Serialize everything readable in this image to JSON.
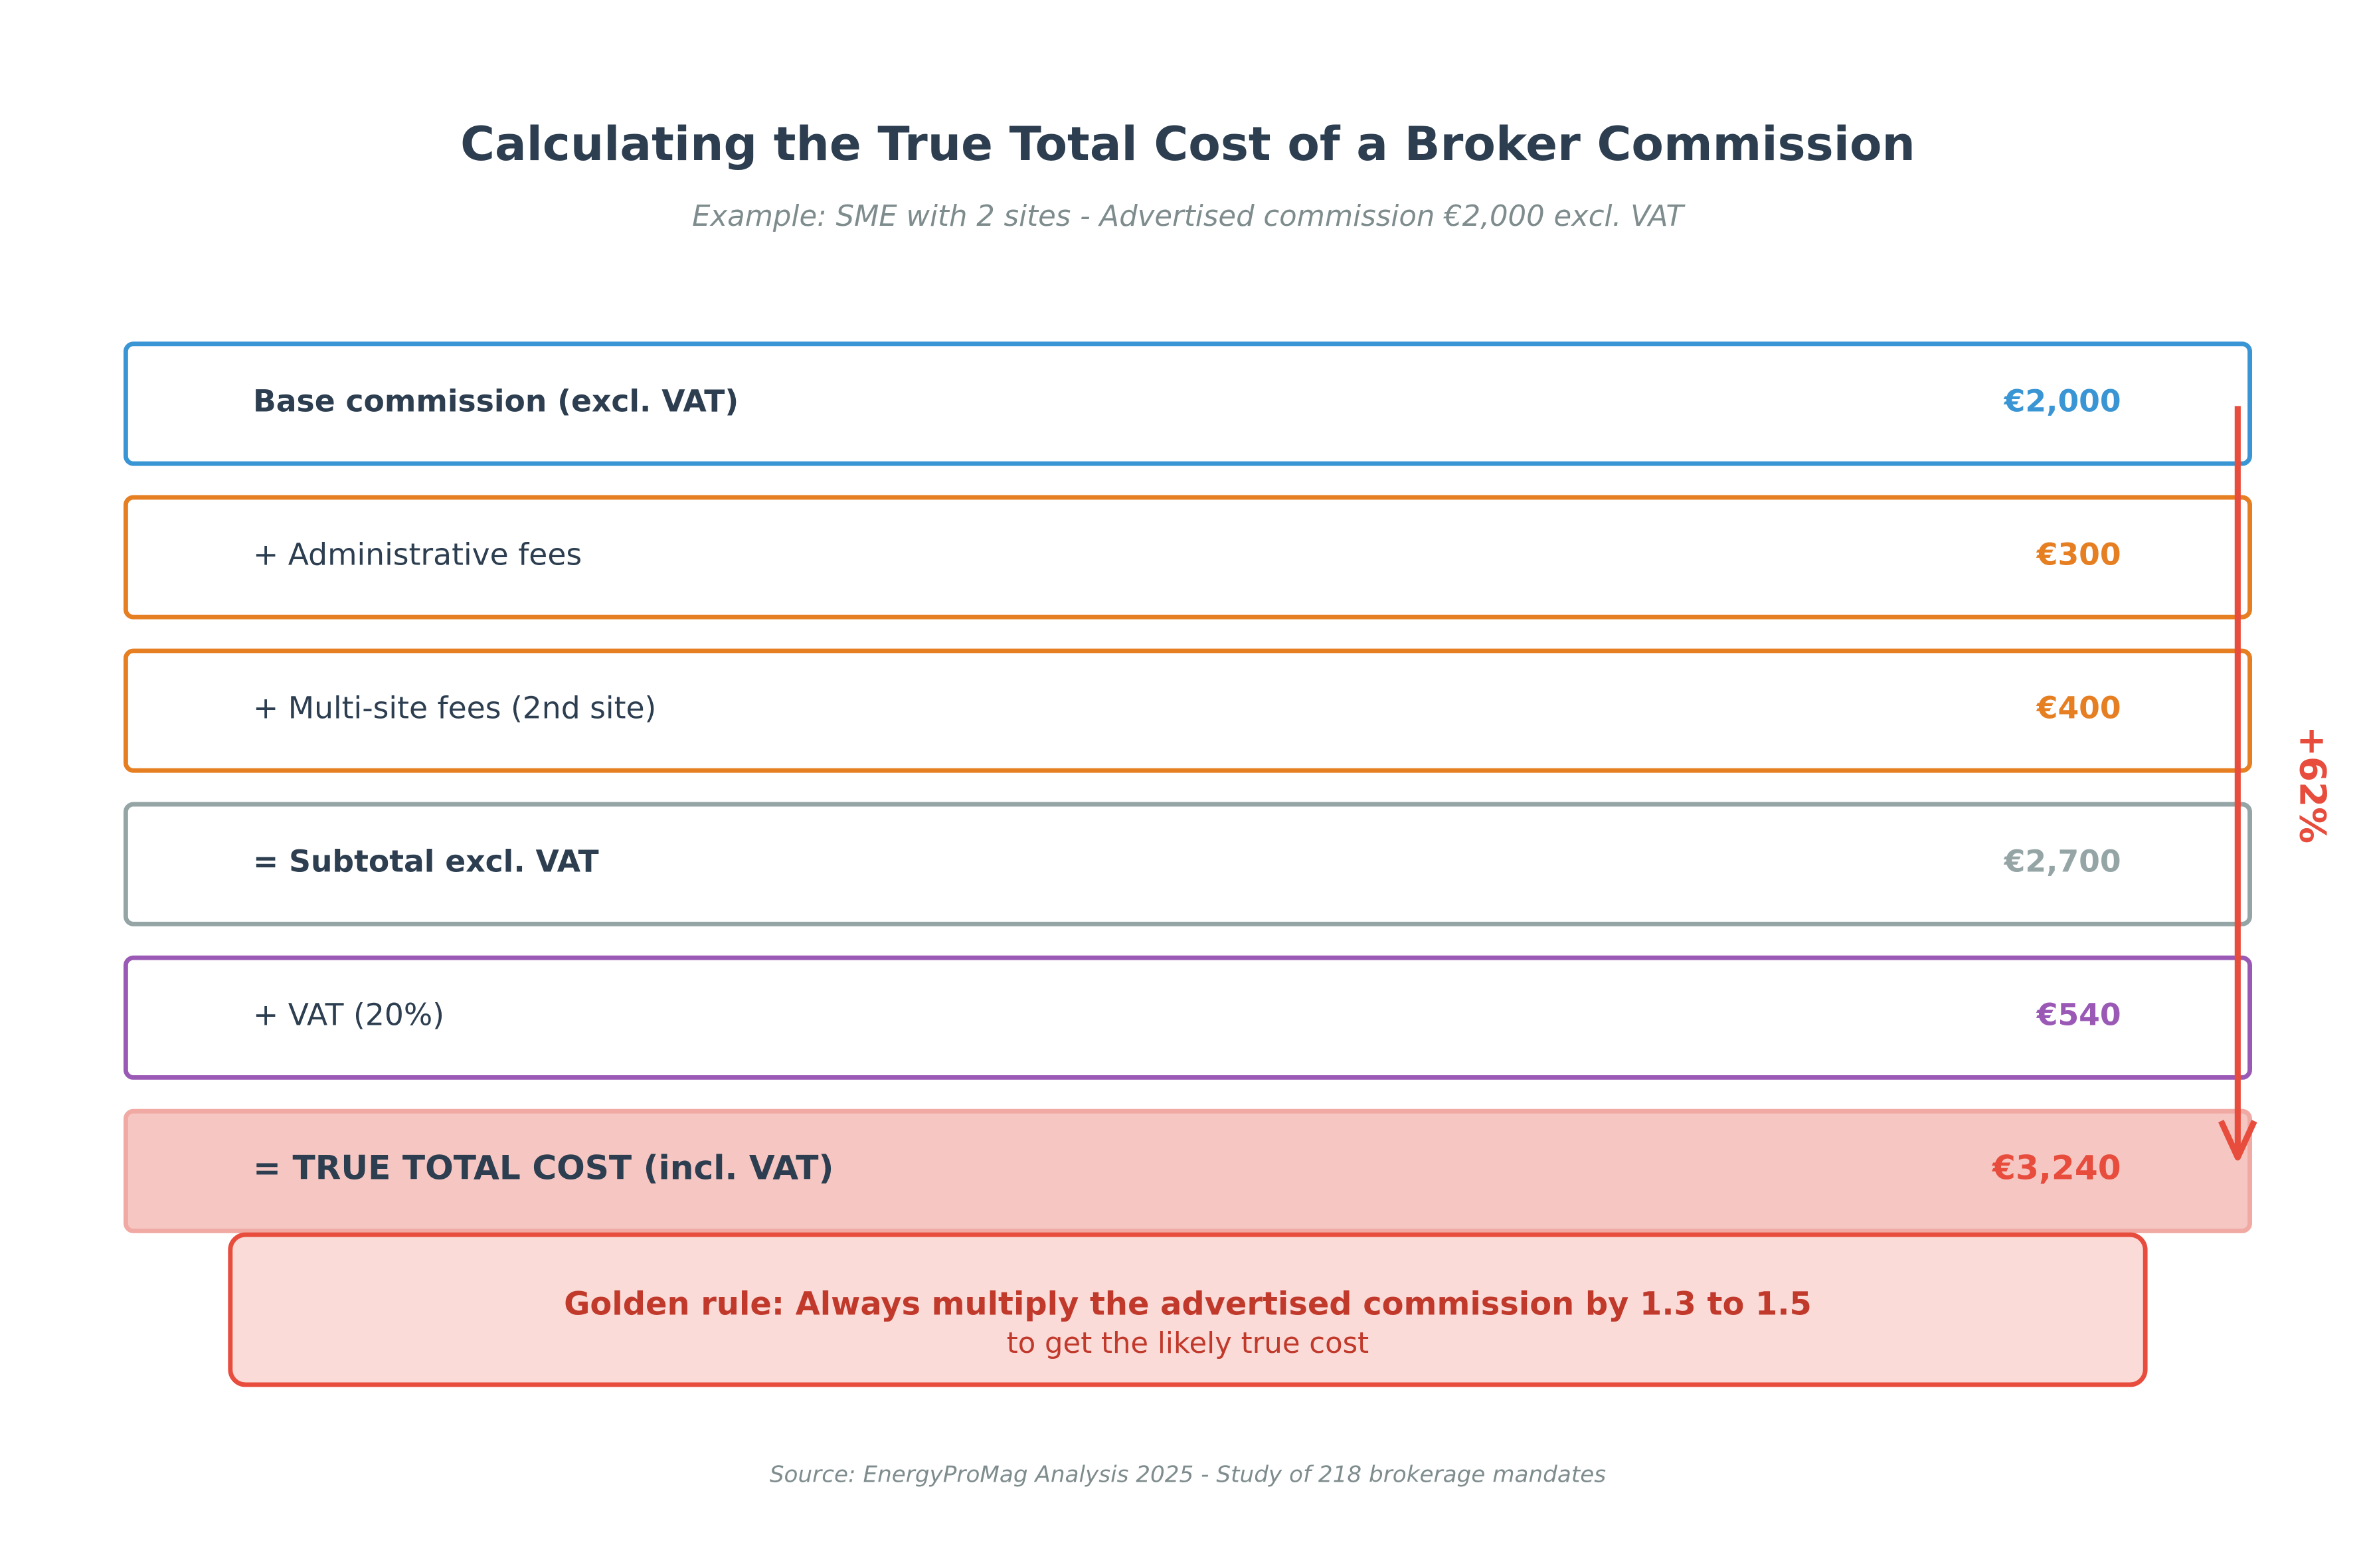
{
  "header": {
    "title": "Calculating the True Total Cost of a Broker Commission",
    "subtitle": "Example: SME with 2 sites - Advertised commission €2,000 excl. VAT"
  },
  "rows": [
    {
      "label": "Base commission (excl. VAT)",
      "value": "€2,000"
    },
    {
      "label": "+ Administrative fees",
      "value": "€300"
    },
    {
      "label": "+ Multi-site fees (2nd site)",
      "value": "€400"
    },
    {
      "label": "= Subtotal excl. VAT",
      "value": "€2,700"
    },
    {
      "label": "+ VAT (20%)",
      "value": "€540"
    },
    {
      "label": "= TRUE TOTAL COST (incl. VAT)",
      "value": "€3,240"
    }
  ],
  "increase": "+62%",
  "rule": {
    "title": "Golden rule: Always multiply the advertised commission by 1.3 to 1.5",
    "text": "to get the likely true cost"
  },
  "source": "Source: EnergyProMag Analysis 2025 - Study of 218 brokerage mandates"
}
